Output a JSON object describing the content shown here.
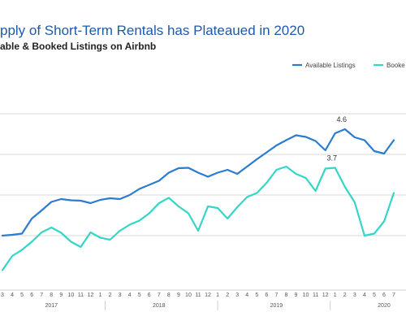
{
  "chart_data": {
    "type": "line",
    "title": "pply of Short-Term Rentals has Plateaued in 2020",
    "subtitle": "able & Booked Listings on Airbnb",
    "colors": {
      "available": "#2b7bd1",
      "booked": "#33d6c7",
      "grid": "#d9d9d9"
    },
    "legend": {
      "placement": "top-right",
      "entries": [
        "Available Listings",
        "Booke"
      ]
    },
    "x_tick_labels": [
      "3",
      "4",
      "5",
      "6",
      "7",
      "8",
      "9",
      "10",
      "11",
      "12",
      "1",
      "2",
      "3",
      "4",
      "5",
      "6",
      "7",
      "8",
      "9",
      "10",
      "11",
      "12",
      "1",
      "2",
      "3",
      "4",
      "5",
      "6",
      "7",
      "8",
      "9",
      "10",
      "11",
      "12",
      "1",
      "2",
      "3",
      "4",
      "5",
      "6",
      "7"
    ],
    "year_labels": [
      {
        "label": "2017",
        "tick_index": 5
      },
      {
        "label": "2018",
        "tick_index": 16
      },
      {
        "label": "2019",
        "tick_index": 28
      },
      {
        "label": "2020",
        "tick_index": 39
      }
    ],
    "ylim": [
      1.0,
      5.8
    ],
    "grid_y": [
      2,
      3,
      4,
      5
    ],
    "series": [
      {
        "name": "Available Listings",
        "color": "#2b7bd1",
        "values": [
          2.0,
          2.02,
          2.05,
          2.42,
          2.62,
          2.83,
          2.9,
          2.87,
          2.86,
          2.8,
          2.88,
          2.92,
          2.9,
          3.0,
          3.15,
          3.25,
          3.35,
          3.55,
          3.66,
          3.67,
          3.55,
          3.45,
          3.55,
          3.62,
          3.52,
          3.7,
          3.88,
          4.05,
          4.22,
          4.35,
          4.47,
          4.43,
          4.33,
          4.1,
          4.52,
          4.62,
          4.42,
          4.35,
          4.08,
          4.02,
          4.35
        ]
      },
      {
        "name": "Booked Listings",
        "color": "#33d6c7",
        "values": [
          1.15,
          1.5,
          1.65,
          1.85,
          2.08,
          2.2,
          2.07,
          1.85,
          1.72,
          2.08,
          1.95,
          1.9,
          2.12,
          2.27,
          2.37,
          2.55,
          2.8,
          2.93,
          2.72,
          2.55,
          2.12,
          2.72,
          2.68,
          2.42,
          2.7,
          2.95,
          3.05,
          3.3,
          3.62,
          3.7,
          3.52,
          3.42,
          3.1,
          3.65,
          3.67,
          3.2,
          2.82,
          2.0,
          2.05,
          2.35,
          3.05
        ]
      }
    ],
    "annotations": [
      {
        "text": "4.6",
        "series": 0,
        "index": 35
      },
      {
        "text": "3.7",
        "series": 1,
        "index": 34
      }
    ]
  }
}
